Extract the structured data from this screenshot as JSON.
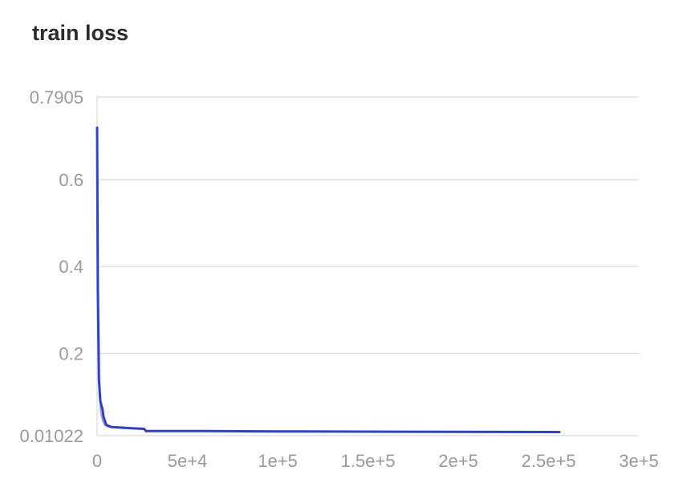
{
  "chart_data": {
    "type": "line",
    "title": "train loss",
    "xlabel": "",
    "ylabel": "",
    "xlim": [
      0,
      300000
    ],
    "ylim": [
      0.01022,
      0.7905
    ],
    "xticks": [
      0,
      50000,
      100000,
      150000,
      200000,
      250000,
      300000
    ],
    "xtick_labels": [
      "0",
      "5e+4",
      "1e+5",
      "1.5e+5",
      "2e+5",
      "2.5e+5",
      "3e+5"
    ],
    "yticks": [
      0.01022,
      0.2,
      0.4,
      0.6,
      0.7905
    ],
    "ytick_labels": [
      "0.01022",
      "0.2",
      "0.4",
      "0.6",
      "0.7905"
    ],
    "grid": true,
    "colors": {
      "smoothed": "#2f3fd6",
      "raw": "#a8a8b8",
      "grid": "#d9d9d9",
      "axis_text": "#9a9a9a"
    },
    "series": [
      {
        "style": "smoothed",
        "x": [
          0,
          400,
          1000,
          1800,
          3000,
          3500,
          5000,
          8000,
          12000,
          20000,
          26000,
          27000,
          50000,
          100000,
          150000,
          200000,
          256000
        ],
        "y": [
          0.72,
          0.35,
          0.14,
          0.09,
          0.07,
          0.055,
          0.035,
          0.03,
          0.029,
          0.027,
          0.026,
          0.021,
          0.021,
          0.02,
          0.0195,
          0.019,
          0.0185
        ]
      },
      {
        "style": "raw",
        "x": [
          0,
          500,
          1200,
          2000,
          3000,
          4000,
          6000,
          9000,
          15000
        ],
        "y": [
          0.7,
          0.3,
          0.11,
          0.065,
          0.045,
          0.036,
          0.031,
          0.029,
          0.027
        ]
      }
    ]
  }
}
